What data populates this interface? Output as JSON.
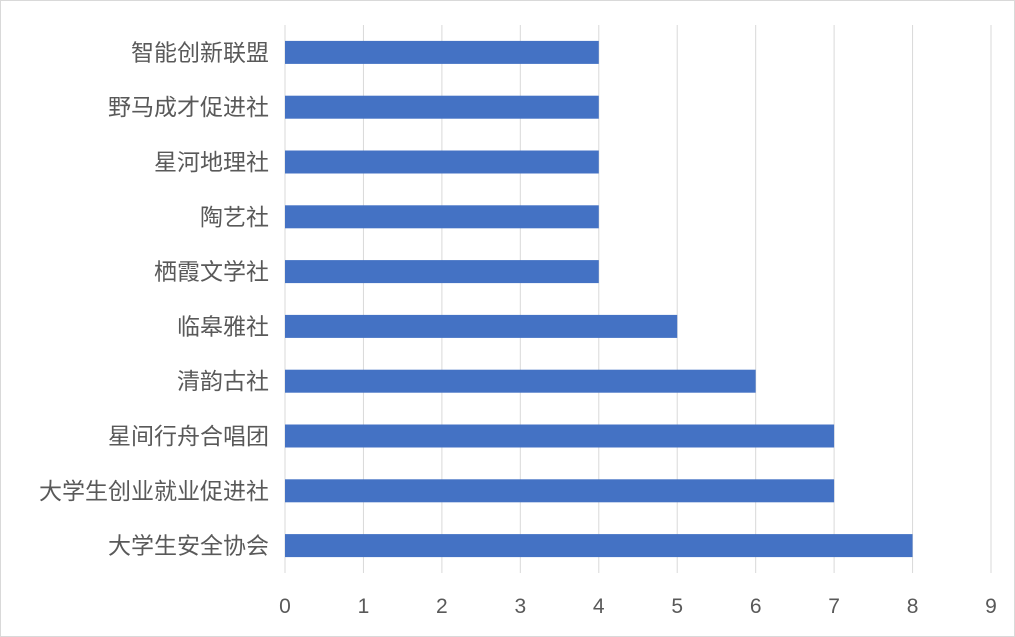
{
  "chart_data": {
    "type": "bar",
    "orientation": "horizontal",
    "categories": [
      "智能创新联盟",
      "野马成才促进社",
      "星河地理社",
      "陶艺社",
      "栖霞文学社",
      "临皋雅社",
      "清韵古社",
      "星间行舟合唱团",
      "大学生创业就业促进社",
      "大学生安全协会"
    ],
    "values": [
      4,
      4,
      4,
      4,
      4,
      5,
      6,
      7,
      7,
      8
    ],
    "x_ticks": [
      "0",
      "1",
      "2",
      "3",
      "4",
      "5",
      "6",
      "7",
      "8",
      "9"
    ],
    "xlim": [
      0,
      9
    ],
    "grid": "vertical",
    "bar_color": "#4472c4",
    "grid_color": "#d9d9d9"
  }
}
